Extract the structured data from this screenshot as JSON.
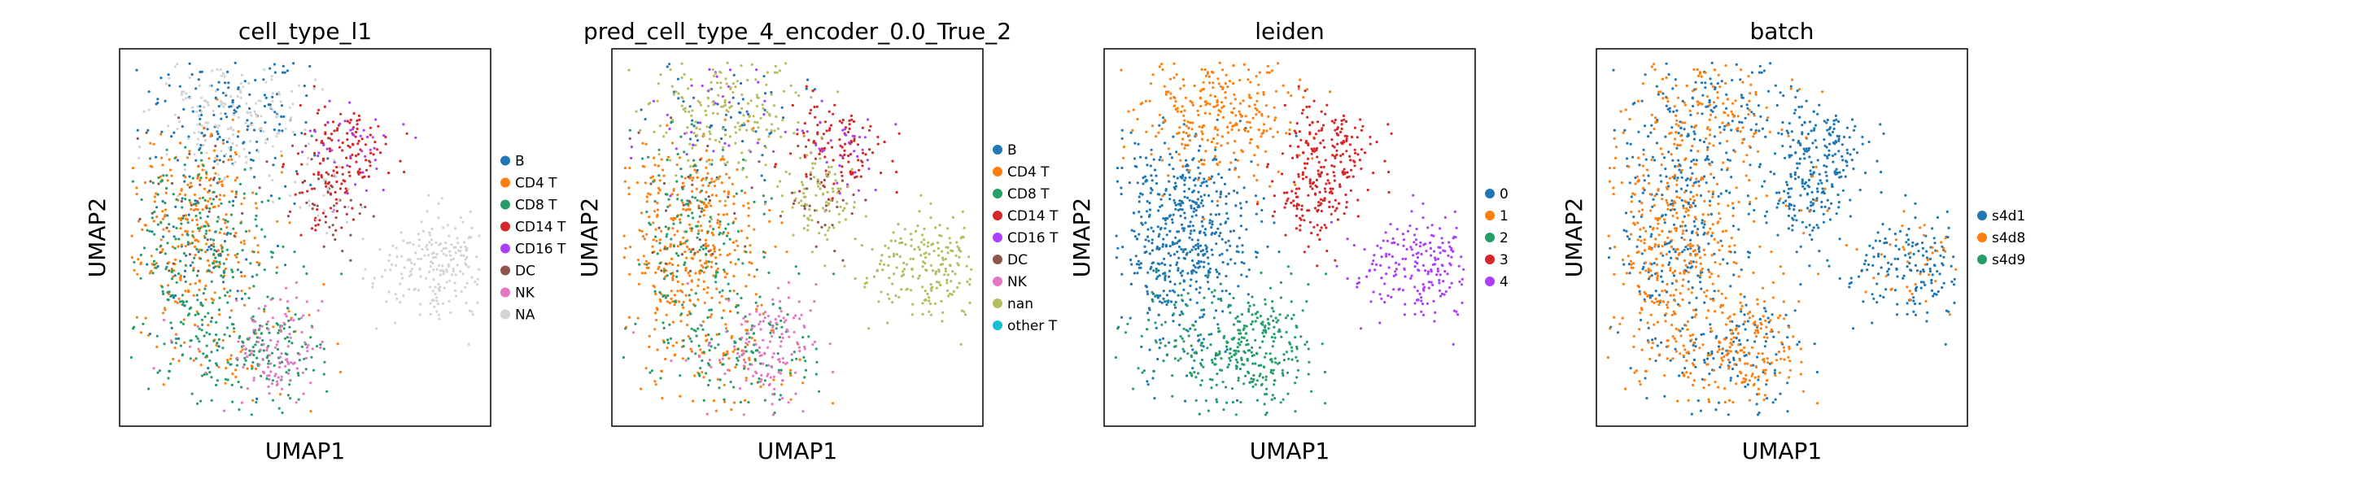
{
  "chart_data": [
    {
      "type": "scatter",
      "title": "cell_type_l1",
      "xlabel": "UMAP1",
      "ylabel": "UMAP2",
      "legend_placement": "right",
      "categories": [
        "B",
        "CD4 T",
        "CD8 T",
        "CD14 T",
        "CD16 T",
        "DC",
        "NK",
        "NA"
      ],
      "colors": [
        "#1f77b4",
        "#ff7f0e",
        "#279e68",
        "#d62728",
        "#aa40fc",
        "#8c564b",
        "#e377c2",
        "#d3d3d3"
      ]
    },
    {
      "type": "scatter",
      "title": "pred_cell_type_4_encoder_0.0_True_2",
      "xlabel": "UMAP1",
      "ylabel": "UMAP2",
      "legend_placement": "right",
      "categories": [
        "B",
        "CD4 T",
        "CD8 T",
        "CD14 T",
        "CD16 T",
        "DC",
        "NK",
        "nan",
        "other T"
      ],
      "colors": [
        "#1f77b4",
        "#ff7f0e",
        "#279e68",
        "#d62728",
        "#aa40fc",
        "#8c564b",
        "#e377c2",
        "#b5bd61",
        "#17becf"
      ]
    },
    {
      "type": "scatter",
      "title": "leiden",
      "xlabel": "UMAP1",
      "ylabel": "UMAP2",
      "legend_placement": "right",
      "categories": [
        "0",
        "1",
        "2",
        "3",
        "4"
      ],
      "colors": [
        "#1f77b4",
        "#ff7f0e",
        "#279e68",
        "#d62728",
        "#aa40fc"
      ]
    },
    {
      "type": "scatter",
      "title": "batch",
      "xlabel": "UMAP1",
      "ylabel": "UMAP2",
      "legend_placement": "right",
      "categories": [
        "s4d1",
        "s4d8",
        "s4d9"
      ],
      "colors": [
        "#1f77b4",
        "#ff7f0e",
        "#279e68"
      ]
    }
  ]
}
